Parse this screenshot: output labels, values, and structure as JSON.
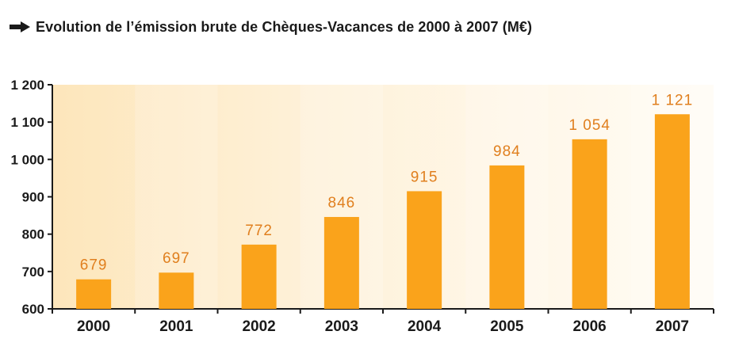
{
  "title": "Evolution de l’émission brute de Chèques-Vacances de 2000 à 2007 (M€)",
  "title_icon": "arrow-right-icon",
  "colors": {
    "bar": "#faa31b",
    "value_label": "#e07f1e",
    "axis": "#1a1a1a",
    "background_light": "#fff9ec",
    "background_dark": "#fde8c2"
  },
  "chart_data": {
    "type": "bar",
    "title": "Evolution de l’émission brute de Chèques-Vacances de 2000 à 2007 (M€)",
    "categories": [
      "2000",
      "2001",
      "2002",
      "2003",
      "2004",
      "2005",
      "2006",
      "2007"
    ],
    "values": [
      679,
      697,
      772,
      846,
      915,
      984,
      1054,
      1121
    ],
    "value_labels": [
      "679",
      "697",
      "772",
      "846",
      "915",
      "984",
      "1 054",
      "1 121"
    ],
    "ylim": [
      600,
      1200
    ],
    "yticks": [
      600,
      700,
      800,
      900,
      1000,
      1100,
      1200
    ],
    "ytick_labels": [
      "600",
      "700",
      "800",
      "900",
      "1 000",
      "1 100",
      "1 200"
    ],
    "xlabel": "",
    "ylabel": "",
    "grid": false,
    "legend": "none"
  }
}
